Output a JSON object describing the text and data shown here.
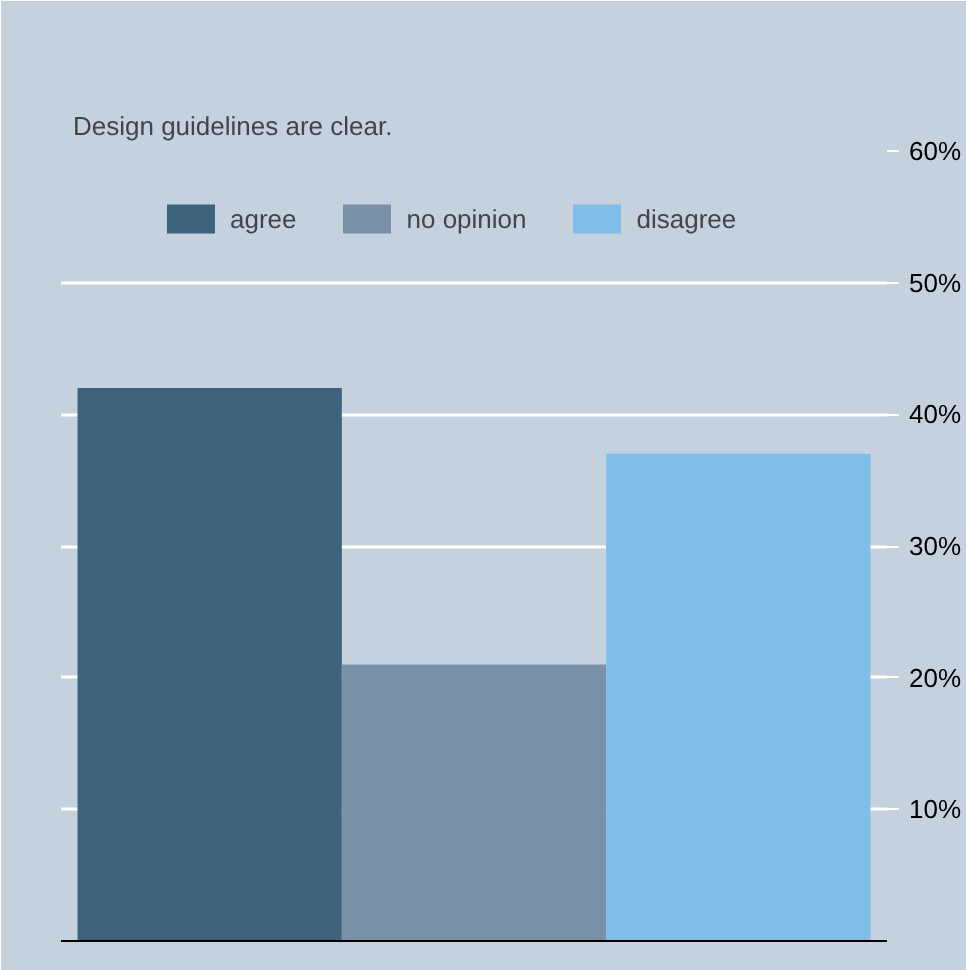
{
  "chart_data": {
    "type": "bar",
    "title": "Design guidelines are clear.",
    "categories": [
      null
    ],
    "series": [
      {
        "name": "agree",
        "color": "#3d627c",
        "values": [
          42
        ]
      },
      {
        "name": "no opinion",
        "color": "#7b91a8",
        "values": [
          21
        ]
      },
      {
        "name": "disagree",
        "color": "#81bde9",
        "values": [
          37
        ]
      }
    ],
    "ylim": [
      0,
      60
    ],
    "yticks": [
      {
        "value": 10,
        "label": "10%"
      },
      {
        "value": 20,
        "label": "20%"
      },
      {
        "value": 30,
        "label": "30%"
      },
      {
        "value": 40,
        "label": "40%"
      },
      {
        "value": 50,
        "label": "50%"
      },
      {
        "value": 60,
        "label": "60%"
      }
    ],
    "grid": "y",
    "legend": "top",
    "tick_labels": "y"
  }
}
